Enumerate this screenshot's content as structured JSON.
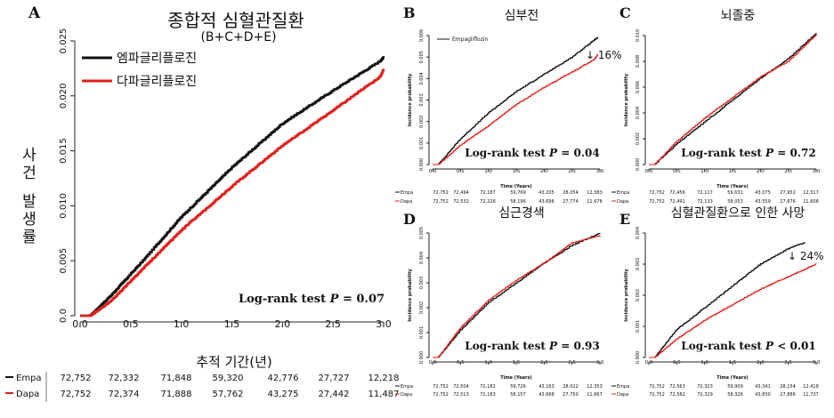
{
  "colors": {
    "empa": "#111111",
    "dapa": "#e0201a",
    "accent": "#e0201a"
  },
  "labels": {
    "log_rank": "Log-rank test",
    "p_var": "P",
    "time_axis_small": "Time (Years)",
    "incidence_small": "Incidence probability"
  },
  "chart_data": [
    {
      "panel": "A",
      "type": "line",
      "title": "종합적 심혈관질환",
      "subtitle": "(B+C+D+E)",
      "xlabel": "추적 기간(년)",
      "ylabel": "사건 발생률",
      "xlim": [
        0,
        3.0
      ],
      "ylim": [
        0,
        0.025
      ],
      "xticks": [
        "0.0",
        "0.5",
        "1.0",
        "1.5",
        "2.0",
        "2.5",
        "3.0"
      ],
      "yticks": [
        "0.0",
        "0.005",
        "0.010",
        "0.015",
        "0.020",
        "0.025"
      ],
      "legend_placement": "top-left",
      "legend": [
        "엠파글리플로진",
        "다파글리플로진"
      ],
      "p_value": "= 0.07",
      "series": [
        {
          "key": "empa",
          "x": [
            0,
            0.1,
            0.3,
            0.6,
            1.0,
            1.5,
            2.0,
            2.5,
            2.97,
            3.0
          ],
          "y": [
            0,
            0,
            0.0018,
            0.0048,
            0.009,
            0.0135,
            0.0175,
            0.0205,
            0.0232,
            0.0235
          ]
        },
        {
          "key": "dapa",
          "x": [
            0,
            0.1,
            0.3,
            0.6,
            1.0,
            1.5,
            2.0,
            2.5,
            2.97,
            3.0
          ],
          "y": [
            0,
            0,
            0.0013,
            0.0041,
            0.0078,
            0.0118,
            0.0155,
            0.0187,
            0.0218,
            0.0224
          ]
        }
      ],
      "risk_table": {
        "rows": [
          {
            "label": "Empa",
            "values": [
              "72,752",
              "72,332",
              "71,848",
              "59,320",
              "42,776",
              "27,727",
              "12,218"
            ]
          },
          {
            "label": "Dapa",
            "values": [
              "72,752",
              "72,374",
              "71,888",
              "57,762",
              "43,275",
              "27,442",
              "11,487"
            ]
          }
        ]
      }
    },
    {
      "panel": "B",
      "type": "line",
      "title": "심부전",
      "title_color": "#e0201a",
      "xlim": [
        0,
        3.0
      ],
      "ylim": [
        0,
        0.006
      ],
      "xticks": [
        "0.0",
        "0.5",
        "1.0",
        "1.5",
        "2.0",
        "2.5",
        "3.0"
      ],
      "yticks": [
        "0.000",
        "0.001",
        "0.002",
        "0.003",
        "0.004",
        "0.005",
        "0.006"
      ],
      "legend": [
        "Empagliflozin"
      ],
      "annotation": "↓ 16%",
      "p_value": "= 0.04",
      "series": [
        {
          "key": "empa",
          "x": [
            0,
            0.1,
            0.5,
            1.0,
            1.5,
            2.0,
            2.5,
            2.9,
            2.96
          ],
          "y": [
            0,
            0,
            0.0012,
            0.0024,
            0.0034,
            0.0042,
            0.005,
            0.0058,
            0.0059
          ]
        },
        {
          "key": "dapa",
          "x": [
            0,
            0.1,
            0.5,
            1.0,
            1.5,
            2.0,
            2.5,
            2.9,
            2.96
          ],
          "y": [
            0,
            0,
            0.0009,
            0.0018,
            0.0028,
            0.0036,
            0.0043,
            0.0049,
            0.0051
          ]
        }
      ],
      "risk_table": {
        "rows": [
          {
            "label": "Empa",
            "values": [
              "72,752",
              "72,494",
              "72,187",
              "59,769",
              "43,205",
              "28,054",
              "12,383"
            ]
          },
          {
            "label": "Dapa",
            "values": [
              "72,752",
              "72,532",
              "72,226",
              "58,196",
              "43,696",
              "27,774",
              "11,676"
            ]
          }
        ]
      }
    },
    {
      "panel": "C",
      "type": "line",
      "title": "뇌졸중",
      "xlim": [
        0,
        3.0
      ],
      "ylim": [
        0,
        0.01
      ],
      "xticks": [
        "0.0",
        "0.5",
        "1.0",
        "1.5",
        "2.0",
        "2.5",
        "3.0"
      ],
      "yticks": [
        "0.000",
        "0.002",
        "0.004",
        "0.006",
        "0.008",
        "0.010"
      ],
      "p_value": "= 0.72",
      "series": [
        {
          "key": "empa",
          "x": [
            0,
            0.1,
            0.5,
            1.0,
            1.5,
            2.0,
            2.5,
            3.0
          ],
          "y": [
            0,
            0,
            0.0016,
            0.0033,
            0.005,
            0.0067,
            0.0082,
            0.0102
          ]
        },
        {
          "key": "dapa",
          "x": [
            0,
            0.1,
            0.5,
            1.0,
            1.5,
            2.0,
            2.5,
            3.0
          ],
          "y": [
            0,
            0,
            0.0018,
            0.0036,
            0.0052,
            0.0068,
            0.008,
            0.0101
          ]
        }
      ],
      "risk_table": {
        "rows": [
          {
            "label": "Empa",
            "values": [
              "72,752",
              "72,456",
              "72,117",
              "59,631",
              "43,075",
              "27,952",
              "12,317"
            ]
          },
          {
            "label": "Dapa",
            "values": [
              "72,752",
              "72,491",
              "72,133",
              "58,053",
              "43,559",
              "27,676",
              "11,608"
            ]
          }
        ]
      }
    },
    {
      "panel": "D",
      "type": "line",
      "title": "심근경색",
      "xlim": [
        0,
        3.0
      ],
      "ylim": [
        0,
        0.005
      ],
      "xticks": [
        "0.0",
        "0.5",
        "1.0",
        "1.5",
        "2.0",
        "2.5",
        "3.0"
      ],
      "yticks": [
        "0.000",
        "0.001",
        "0.002",
        "0.003",
        "0.004",
        "0.005"
      ],
      "p_value": "= 0.93",
      "series": [
        {
          "key": "empa",
          "x": [
            0,
            0.1,
            0.5,
            1.0,
            1.5,
            2.0,
            2.5,
            3.0
          ],
          "y": [
            0,
            0,
            0.0011,
            0.0022,
            0.003,
            0.0038,
            0.0045,
            0.005
          ]
        },
        {
          "key": "dapa",
          "x": [
            0,
            0.1,
            0.5,
            1.0,
            1.5,
            2.0,
            2.5,
            3.0
          ],
          "y": [
            0,
            0,
            0.0012,
            0.0023,
            0.0031,
            0.0038,
            0.0046,
            0.0049
          ]
        }
      ],
      "risk_table": {
        "rows": [
          {
            "label": "Empa",
            "values": [
              "72,752",
              "72,504",
              "72,182",
              "59,726",
              "43,163",
              "28,022",
              "12,353"
            ]
          },
          {
            "label": "Dapa",
            "values": [
              "72,752",
              "72,513",
              "72,183",
              "58,157",
              "43,668",
              "27,750",
              "11,667"
            ]
          }
        ]
      }
    },
    {
      "panel": "E",
      "type": "line",
      "title": "심혈관질환으로 인한 사망",
      "title_color": "#e0201a",
      "xlim": [
        0,
        3.0
      ],
      "ylim": [
        0,
        0.004
      ],
      "xticks": [
        "0.0",
        "0.5",
        "1.0",
        "1.5",
        "2.0",
        "2.5",
        "3.0"
      ],
      "yticks": [
        "0.000",
        "0.001",
        "0.002",
        "0.003",
        "0.004"
      ],
      "annotation": "↓ 24%",
      "p_value": "< 0.01",
      "series": [
        {
          "key": "empa",
          "x": [
            0,
            0.1,
            0.5,
            1.0,
            1.5,
            2.0,
            2.5,
            2.8
          ],
          "y": [
            0,
            0,
            0.0009,
            0.0016,
            0.0023,
            0.003,
            0.0035,
            0.0037
          ]
        },
        {
          "key": "dapa",
          "x": [
            0,
            0.1,
            0.5,
            1.0,
            1.5,
            2.0,
            2.5,
            3.0
          ],
          "y": [
            0,
            0,
            0.0006,
            0.0012,
            0.0017,
            0.0022,
            0.0026,
            0.003
          ]
        }
      ],
      "risk_table": {
        "rows": [
          {
            "label": "Empa",
            "values": [
              "72,752",
              "72,563",
              "72,323",
              "59,909",
              "43,341",
              "28,154",
              "12,418"
            ]
          },
          {
            "label": "Dapa",
            "values": [
              "72,752",
              "72,582",
              "72,329",
              "58,326",
              "43,830",
              "27,886",
              "11,737"
            ]
          }
        ]
      }
    }
  ]
}
